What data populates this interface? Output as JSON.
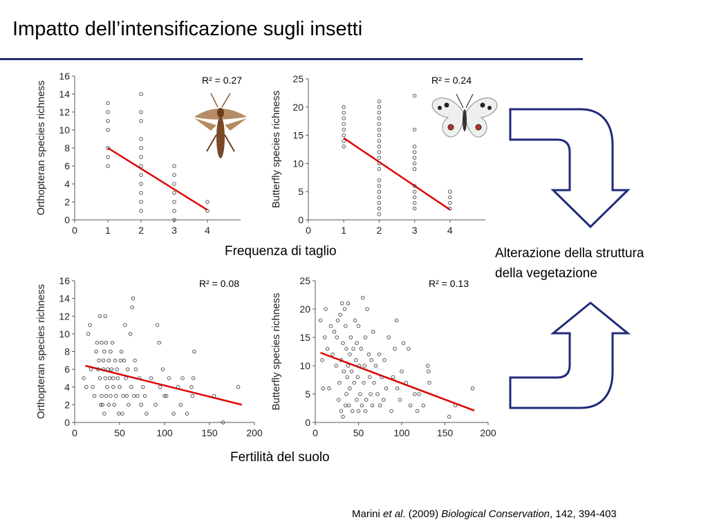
{
  "slide": {
    "title": "Impatto dell’intensificazione sugli insetti",
    "caption_top": "Frequenza di taglio",
    "caption_bottom": "Fertilità del suolo",
    "right_text_line1": "Alterazione della struttura",
    "right_text_line2": "della vegetazione",
    "citation": {
      "author": "Marini ",
      "etal": "et al",
      "year": ". (2009) ",
      "journal": "Biological Conservation",
      "rest": ", 142, 394-403"
    },
    "colors": {
      "rule": "#1f2a78",
      "arrow": "#1f2a78",
      "fit": "#e00000",
      "marker": "#444444"
    },
    "icons": {
      "grasshopper": "grasshopper-photo",
      "butterfly": "butterfly-photo"
    }
  },
  "chart_data": [
    {
      "type": "scatter",
      "ylabel": "Orthopteran species richness",
      "r2": "R² = 0.27",
      "xlim": [
        0,
        5
      ],
      "ylim": [
        0,
        16
      ],
      "xticks": [
        0,
        1,
        2,
        3,
        4
      ],
      "yticks": [
        0,
        2,
        4,
        6,
        8,
        10,
        12,
        14,
        16
      ],
      "points": [
        [
          1,
          6
        ],
        [
          1,
          7
        ],
        [
          1,
          8
        ],
        [
          1,
          10
        ],
        [
          1,
          11
        ],
        [
          1,
          12
        ],
        [
          1,
          13
        ],
        [
          2,
          1
        ],
        [
          2,
          2
        ],
        [
          2,
          3
        ],
        [
          2,
          4
        ],
        [
          2,
          5
        ],
        [
          2,
          6
        ],
        [
          2,
          7
        ],
        [
          2,
          8
        ],
        [
          2,
          9
        ],
        [
          2,
          11
        ],
        [
          2,
          12
        ],
        [
          2,
          14
        ],
        [
          3,
          0
        ],
        [
          3,
          1
        ],
        [
          3,
          2
        ],
        [
          3,
          3
        ],
        [
          3,
          4
        ],
        [
          3,
          5
        ],
        [
          3,
          6
        ],
        [
          4,
          1
        ],
        [
          4,
          2
        ]
      ],
      "fit": [
        [
          1,
          8
        ],
        [
          4,
          1.1
        ]
      ]
    },
    {
      "type": "scatter",
      "ylabel": "Butterfly species richness",
      "r2": "R² = 0.24",
      "xlim": [
        0,
        5
      ],
      "ylim": [
        0,
        25
      ],
      "xticks": [
        0,
        1,
        2,
        3,
        4
      ],
      "yticks": [
        0,
        5,
        10,
        15,
        20,
        25
      ],
      "points": [
        [
          1,
          13
        ],
        [
          1,
          14
        ],
        [
          1,
          15
        ],
        [
          1,
          16
        ],
        [
          1,
          17
        ],
        [
          1,
          18
        ],
        [
          1,
          19
        ],
        [
          1,
          20
        ],
        [
          2,
          1
        ],
        [
          2,
          2
        ],
        [
          2,
          3
        ],
        [
          2,
          4
        ],
        [
          2,
          5
        ],
        [
          2,
          6
        ],
        [
          2,
          7
        ],
        [
          2,
          9
        ],
        [
          2,
          10
        ],
        [
          2,
          11
        ],
        [
          2,
          12
        ],
        [
          2,
          13
        ],
        [
          2,
          14
        ],
        [
          2,
          15
        ],
        [
          2,
          16
        ],
        [
          2,
          17
        ],
        [
          2,
          18
        ],
        [
          2,
          19
        ],
        [
          2,
          20
        ],
        [
          2,
          21
        ],
        [
          3,
          2
        ],
        [
          3,
          3
        ],
        [
          3,
          4
        ],
        [
          3,
          5
        ],
        [
          3,
          6
        ],
        [
          3,
          9
        ],
        [
          3,
          10
        ],
        [
          3,
          11
        ],
        [
          3,
          12
        ],
        [
          3,
          13
        ],
        [
          3,
          16
        ],
        [
          3,
          22
        ],
        [
          4,
          2
        ],
        [
          4,
          3
        ],
        [
          4,
          4
        ],
        [
          4,
          5
        ]
      ],
      "fit": [
        [
          1,
          14.5
        ],
        [
          4,
          1.8
        ]
      ]
    },
    {
      "type": "scatter",
      "ylabel": "Orthopteran species richness",
      "r2": "R² = 0.08",
      "xlim": [
        0,
        200
      ],
      "ylim": [
        0,
        16
      ],
      "xticks": [
        0,
        50,
        100,
        150,
        200
      ],
      "yticks": [
        0,
        2,
        4,
        6,
        8,
        10,
        12,
        14,
        16
      ],
      "points": [
        [
          10,
          5
        ],
        [
          13,
          4
        ],
        [
          15,
          10
        ],
        [
          17,
          11
        ],
        [
          18,
          6
        ],
        [
          20,
          4
        ],
        [
          22,
          3
        ],
        [
          24,
          8
        ],
        [
          25,
          9
        ],
        [
          26,
          6
        ],
        [
          27,
          7
        ],
        [
          28,
          12
        ],
        [
          28,
          5
        ],
        [
          29,
          2
        ],
        [
          30,
          3
        ],
        [
          30,
          9
        ],
        [
          31,
          2
        ],
        [
          32,
          6
        ],
        [
          32,
          7
        ],
        [
          33,
          1
        ],
        [
          33,
          8
        ],
        [
          34,
          5
        ],
        [
          34,
          12
        ],
        [
          35,
          3
        ],
        [
          35,
          9
        ],
        [
          36,
          4
        ],
        [
          37,
          6
        ],
        [
          38,
          2
        ],
        [
          38,
          7
        ],
        [
          39,
          5
        ],
        [
          40,
          3
        ],
        [
          40,
          8
        ],
        [
          41,
          6
        ],
        [
          42,
          9
        ],
        [
          43,
          4
        ],
        [
          43,
          5
        ],
        [
          44,
          2
        ],
        [
          45,
          7
        ],
        [
          46,
          3
        ],
        [
          47,
          6
        ],
        [
          48,
          5
        ],
        [
          49,
          1
        ],
        [
          50,
          4
        ],
        [
          51,
          7
        ],
        [
          52,
          8
        ],
        [
          53,
          1
        ],
        [
          54,
          3
        ],
        [
          55,
          7
        ],
        [
          56,
          11
        ],
        [
          57,
          5
        ],
        [
          58,
          3
        ],
        [
          59,
          6
        ],
        [
          60,
          2
        ],
        [
          62,
          10
        ],
        [
          63,
          4
        ],
        [
          64,
          13
        ],
        [
          65,
          14
        ],
        [
          66,
          3
        ],
        [
          67,
          7
        ],
        [
          68,
          6
        ],
        [
          70,
          3
        ],
        [
          72,
          5
        ],
        [
          74,
          2
        ],
        [
          76,
          4
        ],
        [
          78,
          3
        ],
        [
          80,
          1
        ],
        [
          85,
          5
        ],
        [
          90,
          2
        ],
        [
          92,
          11
        ],
        [
          94,
          9
        ],
        [
          95,
          4
        ],
        [
          98,
          6
        ],
        [
          100,
          3
        ],
        [
          102,
          3
        ],
        [
          105,
          5
        ],
        [
          110,
          1
        ],
        [
          115,
          4
        ],
        [
          118,
          2
        ],
        [
          120,
          5
        ],
        [
          125,
          1
        ],
        [
          130,
          4
        ],
        [
          131,
          3
        ],
        [
          132,
          5
        ],
        [
          133,
          8
        ],
        [
          155,
          3
        ],
        [
          165,
          0
        ],
        [
          182,
          4
        ]
      ],
      "fit": [
        [
          12,
          6.4
        ],
        [
          186,
          2.0
        ]
      ]
    },
    {
      "type": "scatter",
      "ylabel": "Butterfly species richness",
      "r2": "R² = 0.13",
      "xlim": [
        0,
        200
      ],
      "ylim": [
        0,
        25
      ],
      "xticks": [
        0,
        50,
        100,
        150,
        200
      ],
      "yticks": [
        0,
        5,
        10,
        15,
        20,
        25
      ],
      "points": [
        [
          6,
          18
        ],
        [
          8,
          11
        ],
        [
          9,
          6
        ],
        [
          11,
          15
        ],
        [
          12,
          20
        ],
        [
          14,
          13
        ],
        [
          16,
          6
        ],
        [
          18,
          17
        ],
        [
          20,
          12
        ],
        [
          22,
          16
        ],
        [
          24,
          10
        ],
        [
          25,
          15
        ],
        [
          26,
          18
        ],
        [
          27,
          4
        ],
        [
          28,
          7
        ],
        [
          29,
          19
        ],
        [
          30,
          2
        ],
        [
          30,
          11
        ],
        [
          31,
          21
        ],
        [
          32,
          1
        ],
        [
          32,
          14
        ],
        [
          33,
          9
        ],
        [
          34,
          20
        ],
        [
          35,
          3
        ],
        [
          35,
          17
        ],
        [
          36,
          5
        ],
        [
          36,
          13
        ],
        [
          37,
          8
        ],
        [
          38,
          10
        ],
        [
          38,
          21
        ],
        [
          39,
          3
        ],
        [
          40,
          6
        ],
        [
          40,
          12
        ],
        [
          41,
          15
        ],
        [
          42,
          9
        ],
        [
          43,
          2
        ],
        [
          44,
          13
        ],
        [
          45,
          7
        ],
        [
          46,
          18
        ],
        [
          47,
          11
        ],
        [
          48,
          4
        ],
        [
          48,
          14
        ],
        [
          49,
          8
        ],
        [
          50,
          2
        ],
        [
          50,
          17
        ],
        [
          51,
          10
        ],
        [
          52,
          5
        ],
        [
          53,
          13
        ],
        [
          54,
          3
        ],
        [
          55,
          22
        ],
        [
          56,
          7
        ],
        [
          57,
          10
        ],
        [
          58,
          2
        ],
        [
          58,
          15
        ],
        [
          59,
          4
        ],
        [
          60,
          20
        ],
        [
          62,
          12
        ],
        [
          63,
          8
        ],
        [
          64,
          5
        ],
        [
          65,
          11
        ],
        [
          66,
          3
        ],
        [
          67,
          16
        ],
        [
          68,
          7
        ],
        [
          70,
          10
        ],
        [
          72,
          5
        ],
        [
          74,
          12
        ],
        [
          75,
          3
        ],
        [
          77,
          8
        ],
        [
          79,
          4
        ],
        [
          80,
          11
        ],
        [
          82,
          6
        ],
        [
          85,
          15
        ],
        [
          88,
          2
        ],
        [
          90,
          8
        ],
        [
          92,
          13
        ],
        [
          94,
          18
        ],
        [
          95,
          6
        ],
        [
          98,
          4
        ],
        [
          100,
          9
        ],
        [
          102,
          14
        ],
        [
          105,
          7
        ],
        [
          108,
          13
        ],
        [
          110,
          3
        ],
        [
          115,
          5
        ],
        [
          118,
          2
        ],
        [
          120,
          5
        ],
        [
          125,
          3
        ],
        [
          130,
          10
        ],
        [
          131,
          9
        ],
        [
          132,
          7
        ],
        [
          155,
          1
        ],
        [
          162,
          3
        ],
        [
          182,
          6
        ]
      ],
      "fit": [
        [
          6,
          12.3
        ],
        [
          184,
          2.1
        ]
      ]
    }
  ]
}
